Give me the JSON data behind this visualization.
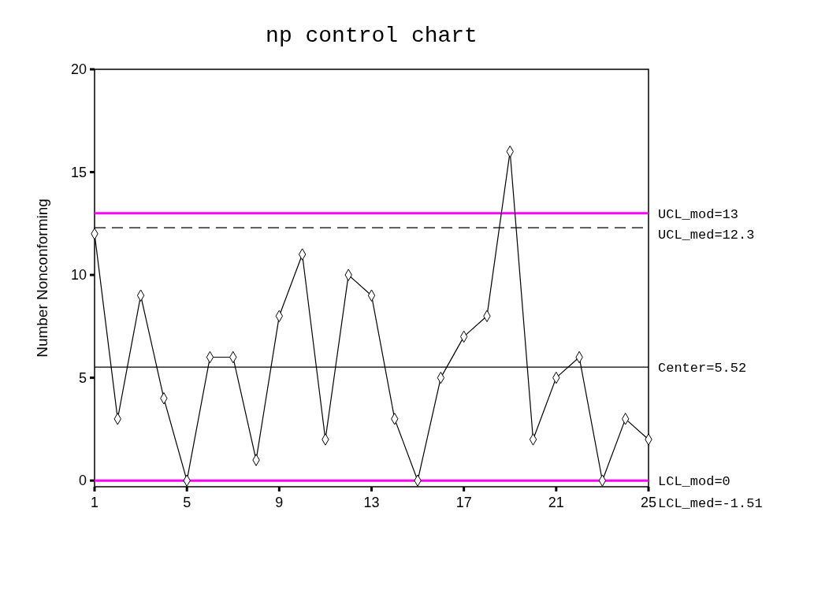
{
  "chart_data": {
    "type": "line",
    "title": "np control chart",
    "ylabel": "Number Nonconforming",
    "x": [
      1,
      2,
      3,
      4,
      5,
      6,
      7,
      8,
      9,
      10,
      11,
      12,
      13,
      14,
      15,
      16,
      17,
      18,
      19,
      20,
      21,
      22,
      23,
      24,
      25
    ],
    "series": [
      {
        "color": "#000000",
        "values": [
          12,
          3,
          9,
          4,
          0,
          6,
          6,
          1,
          8,
          11,
          2,
          10,
          9,
          3,
          0,
          5,
          7,
          8,
          16,
          2,
          5,
          6,
          0,
          3,
          2
        ]
      }
    ],
    "xlim": [
      1,
      25
    ],
    "xticks": [
      1,
      5,
      9,
      13,
      17,
      21,
      25
    ],
    "ylim": [
      -0.3,
      20
    ],
    "yticks": [
      0,
      5,
      10,
      15,
      20
    ],
    "marker": "diamond",
    "line_style": "solid",
    "grid": false,
    "ref_lines": [
      {
        "axis": "y",
        "value": 13,
        "label": "UCL_mod=13",
        "color": "#ff00ff",
        "line_style": "solid"
      },
      {
        "axis": "y",
        "value": 12.3,
        "label": "UCL_med=12.3",
        "color": "#000000",
        "line_style": "dashed"
      },
      {
        "axis": "y",
        "value": 5.52,
        "label": "Center=5.52",
        "color": "#000000",
        "line_style": "solid"
      },
      {
        "axis": "y",
        "value": 0,
        "label": "LCL_mod=0",
        "color": "#ff00ff",
        "line_style": "solid"
      }
    ],
    "annotations": [
      "LCL_med=-1.51"
    ]
  }
}
